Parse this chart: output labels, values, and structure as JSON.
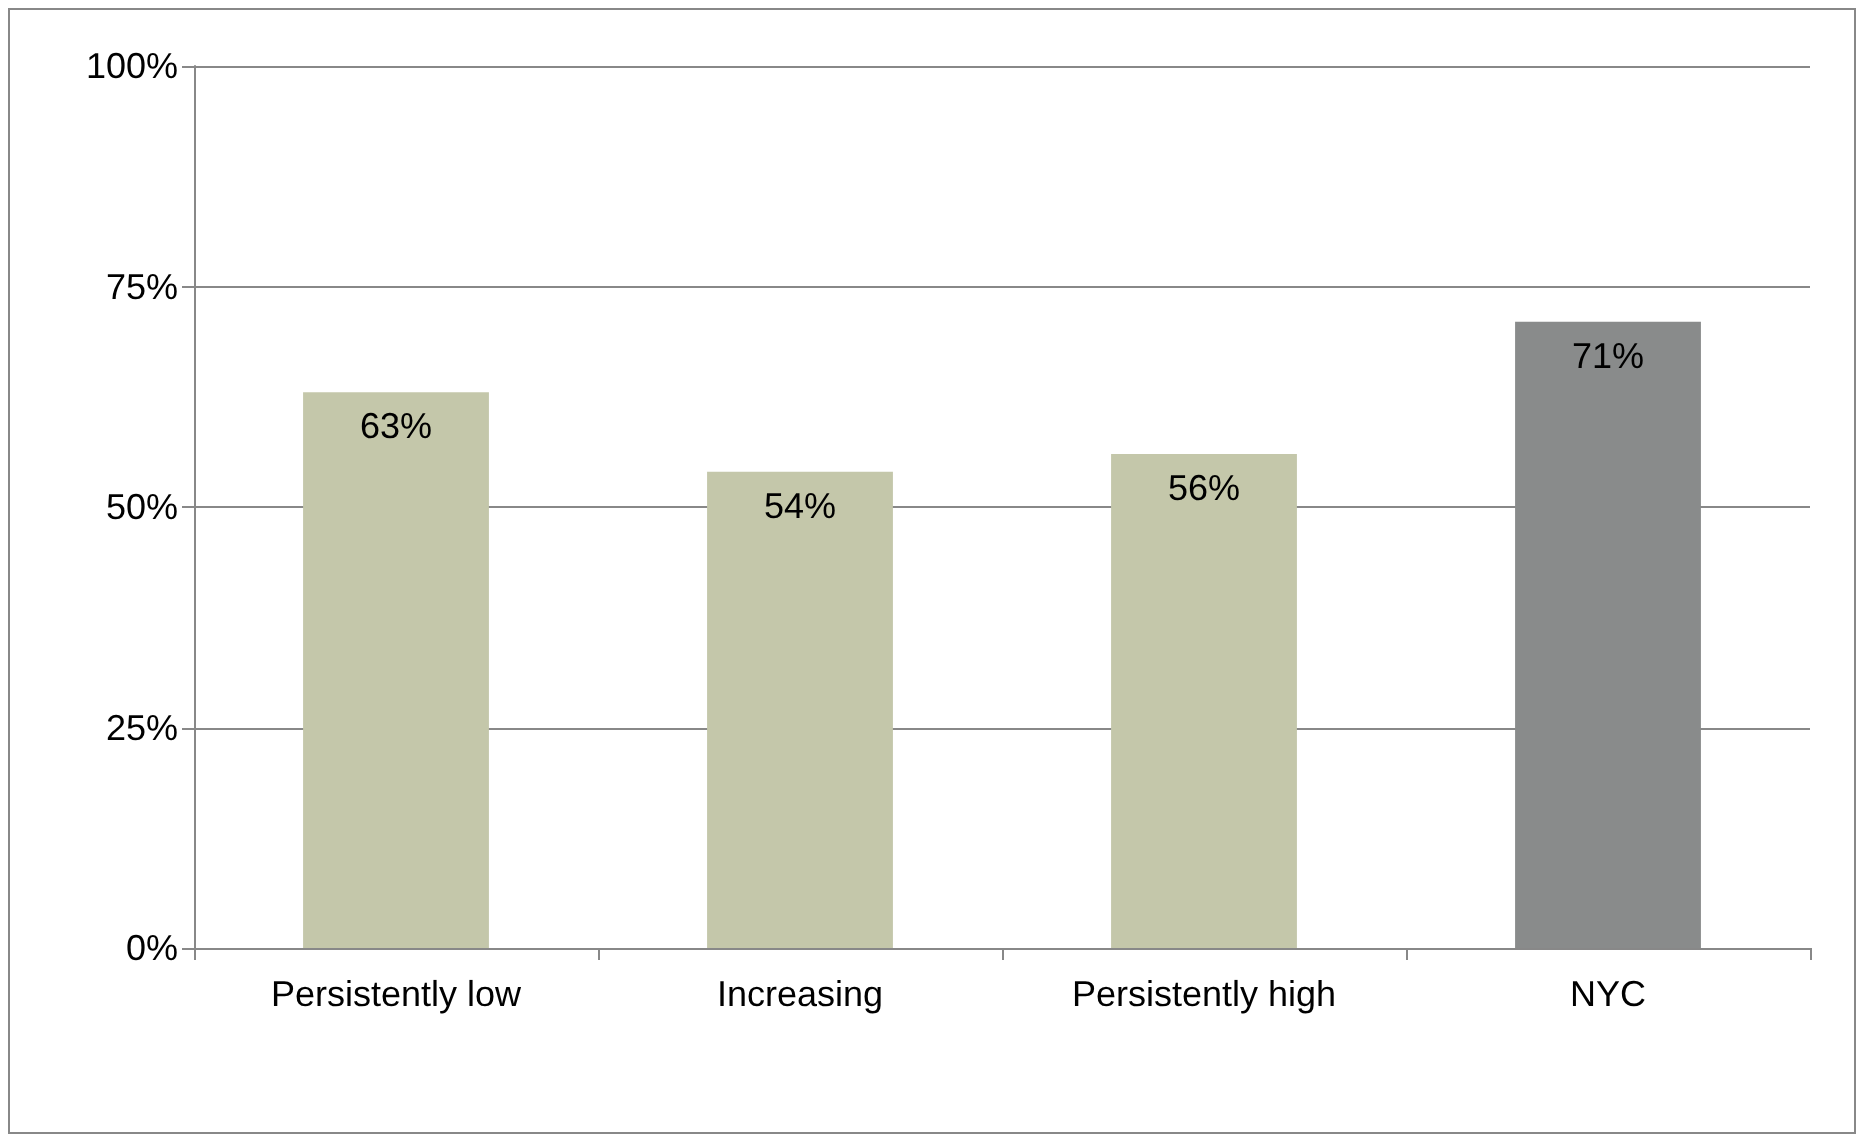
{
  "chart_data": {
    "type": "bar",
    "categories": [
      "Persistently low",
      "Increasing",
      "Persistently high",
      "NYC"
    ],
    "values": [
      63,
      54,
      56,
      71
    ],
    "colors": [
      "#c4c7aa",
      "#c4c7aa",
      "#c4c7aa",
      "#898b8b"
    ],
    "value_labels": [
      "63%",
      "54%",
      "56%",
      "71%"
    ],
    "ylim": [
      0,
      100
    ],
    "yticks": [
      {
        "value": 0,
        "label": "0%"
      },
      {
        "value": 25,
        "label": "25%"
      },
      {
        "value": 50,
        "label": "50%"
      },
      {
        "value": 75,
        "label": "75%"
      },
      {
        "value": 100,
        "label": "100%"
      }
    ],
    "grid": "y"
  }
}
